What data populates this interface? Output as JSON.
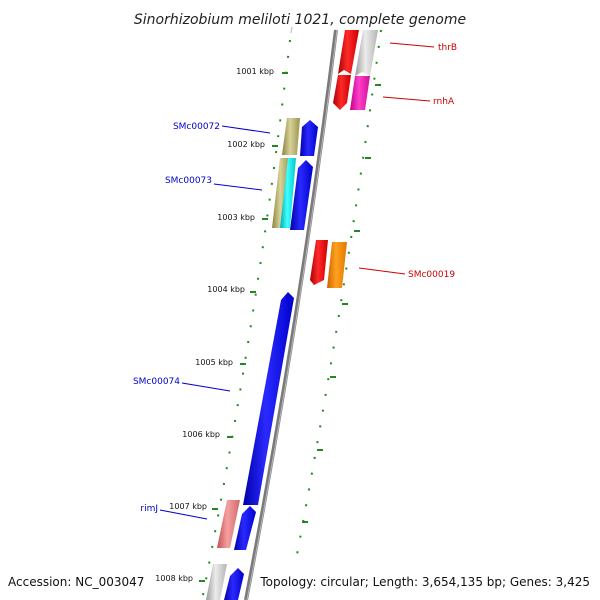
{
  "title": "Sinorhizobium meliloti 1021, complete genome",
  "footer": {
    "accession": "Accession: NC_003047",
    "summary": "Topology: circular; Length: 3,654,135 bp; Genes: 3,425"
  },
  "kbp_labels": [
    "1001 kbp",
    "1002 kbp",
    "1003 kbp",
    "1004 kbp",
    "1005 kbp",
    "1006 kbp",
    "1007 kbp",
    "1008 kbp"
  ],
  "genes_forward": [
    "thrB",
    "rnhA",
    "SMc00019"
  ],
  "genes_reverse": [
    "SMc00072",
    "SMc00073",
    "SMc00074",
    "rimJ"
  ],
  "colors": {
    "forward_label": "#cc0000",
    "reverse_label": "#0000cc",
    "tick": "#228822",
    "backbone": "#808080"
  }
}
